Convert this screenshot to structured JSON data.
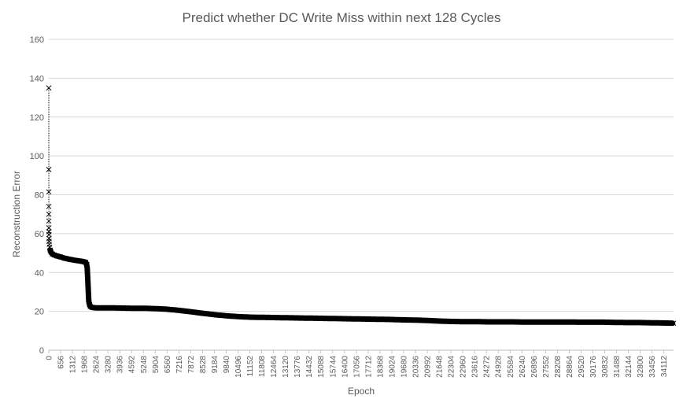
{
  "chart_data": {
    "type": "line",
    "title": "Predict whether DC Write Miss within next 128 Cycles",
    "xlabel": "Epoch",
    "ylabel": "Reconstruction Error",
    "ylim": [
      0,
      160
    ],
    "yticks": [
      0,
      20,
      40,
      60,
      80,
      100,
      120,
      140,
      160
    ],
    "xlim": [
      0,
      34650
    ],
    "xticks": [
      0,
      656,
      1312,
      1968,
      2624,
      3280,
      3936,
      4592,
      5248,
      5904,
      6560,
      7216,
      7872,
      8528,
      9184,
      9840,
      10496,
      11152,
      11808,
      12464,
      13120,
      13776,
      14432,
      15088,
      15744,
      16400,
      17056,
      17712,
      18368,
      19024,
      19680,
      20336,
      20992,
      21648,
      22304,
      22960,
      23616,
      24272,
      24928,
      25584,
      26240,
      26896,
      27552,
      28208,
      28864,
      29520,
      30176,
      30832,
      31488,
      32144,
      32800,
      33456,
      34112
    ],
    "grid": true,
    "legend": "none",
    "marker": "x",
    "colors": {
      "series": "#000000",
      "grid": "#d9d9d9",
      "text": "#595959"
    },
    "series": [
      {
        "x": [
          0,
          1,
          2,
          3,
          4,
          5,
          6,
          8,
          10,
          15,
          20,
          30,
          50,
          80,
          120,
          200,
          300,
          450,
          656,
          900,
          1200,
          1500,
          1800,
          1968,
          2050,
          2120,
          2150,
          2180,
          2200,
          2220,
          2260,
          2300,
          2400,
          2624,
          3280,
          3936,
          4592,
          5248,
          5904,
          6560,
          7216,
          7872,
          8528,
          9184,
          9840,
          10496,
          11152,
          11808,
          12464,
          13120,
          13776,
          14432,
          15088,
          15744,
          16400,
          17056,
          17712,
          18368,
          19024,
          19680,
          20336,
          20992,
          21648,
          22304,
          22960,
          23616,
          24272,
          24928,
          25584,
          26240,
          26896,
          27552,
          28208,
          28864,
          29520,
          30176,
          30832,
          31488,
          32144,
          32800,
          33456,
          34112,
          34650
        ],
        "y": [
          135,
          93,
          81.5,
          74,
          70,
          66.5,
          63,
          61,
          59.5,
          57.5,
          56,
          54.5,
          53,
          51.5,
          50.5,
          49.5,
          49,
          48.5,
          48,
          47.3,
          46.7,
          46.2,
          45.8,
          45.5,
          45.2,
          44,
          40,
          33,
          28,
          25,
          23.5,
          22.5,
          22,
          21.8,
          21.8,
          21.7,
          21.6,
          21.6,
          21.4,
          21.1,
          20.5,
          19.8,
          19,
          18.3,
          17.7,
          17.3,
          17,
          16.9,
          16.8,
          16.7,
          16.6,
          16.5,
          16.4,
          16.3,
          16.2,
          16.1,
          16.0,
          15.9,
          15.8,
          15.6,
          15.5,
          15.3,
          15.0,
          14.8,
          14.7,
          14.7,
          14.6,
          14.6,
          14.6,
          14.5,
          14.5,
          14.5,
          14.5,
          14.5,
          14.4,
          14.4,
          14.4,
          14.3,
          14.2,
          14.2,
          14.1,
          14.0,
          13.9
        ]
      }
    ]
  }
}
